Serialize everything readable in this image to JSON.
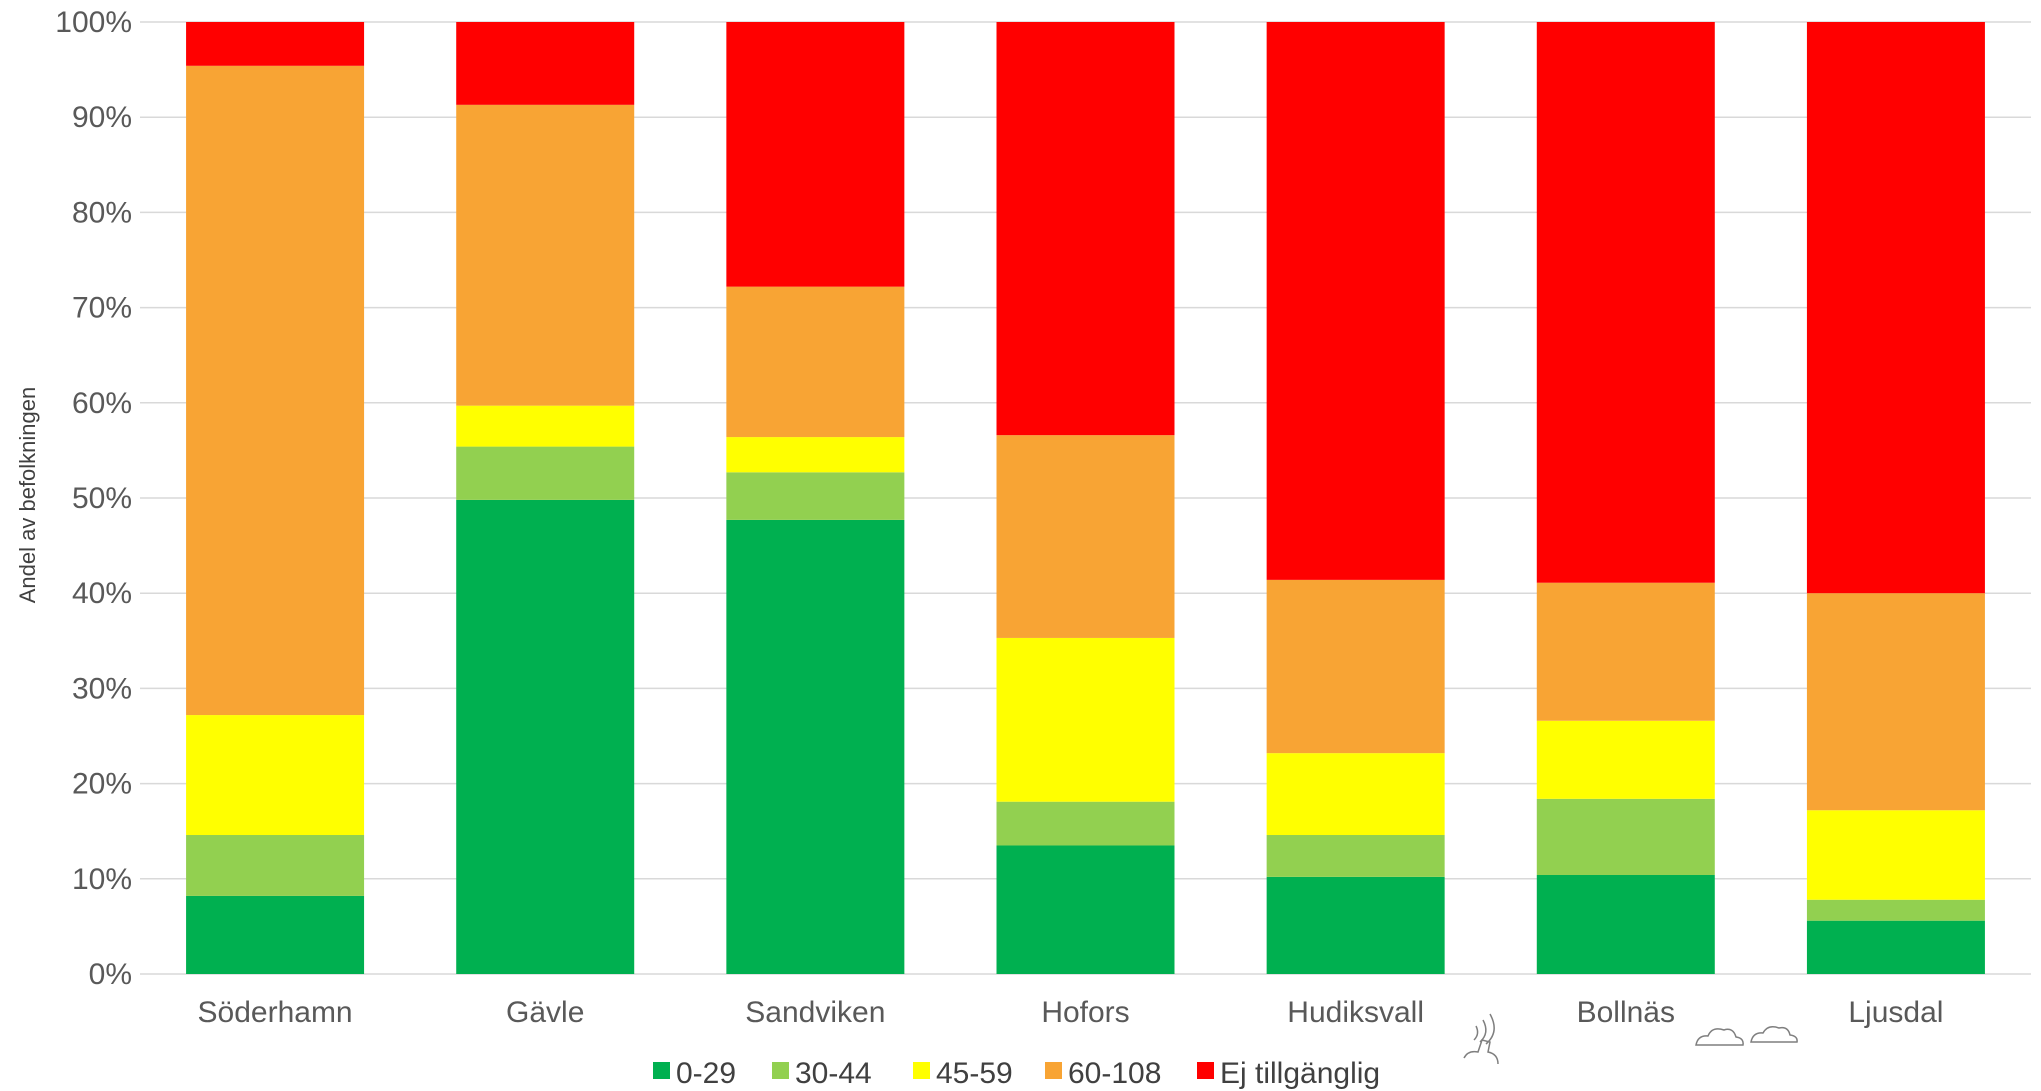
{
  "chart_data": {
    "type": "bar",
    "stacked": "percent",
    "ylabel": "Andel av befolkningen",
    "xlabel": "",
    "ylim": [
      0,
      100
    ],
    "yticks": [
      "0%",
      "10%",
      "20%",
      "30%",
      "40%",
      "50%",
      "60%",
      "70%",
      "80%",
      "90%",
      "100%"
    ],
    "grid": true,
    "legend_position": "bottom",
    "categories": [
      "Söderhamn",
      "Gävle",
      "Sandviken",
      "Hofors",
      "Hudiksvall",
      "Bollnäs",
      "Ljusdal"
    ],
    "series": [
      {
        "name": "0-29",
        "color": "#00b050",
        "values": [
          8.2,
          49.8,
          47.7,
          13.5,
          10.2,
          10.4,
          5.6
        ]
      },
      {
        "name": "30-44",
        "color": "#92d050",
        "values": [
          6.4,
          5.6,
          5.0,
          4.6,
          4.4,
          8.0,
          2.2
        ]
      },
      {
        "name": "45-59",
        "color": "#ffff00",
        "values": [
          12.6,
          4.3,
          3.7,
          17.2,
          8.6,
          8.2,
          9.4
        ]
      },
      {
        "name": "60-108",
        "color": "#f8a434",
        "values": [
          68.2,
          31.6,
          15.8,
          21.3,
          18.2,
          14.5,
          22.8
        ]
      },
      {
        "name": "Ej tillgänglig",
        "color": "#ff0000",
        "values": [
          4.6,
          8.7,
          27.8,
          43.4,
          58.6,
          58.9,
          60.0
        ]
      }
    ]
  }
}
